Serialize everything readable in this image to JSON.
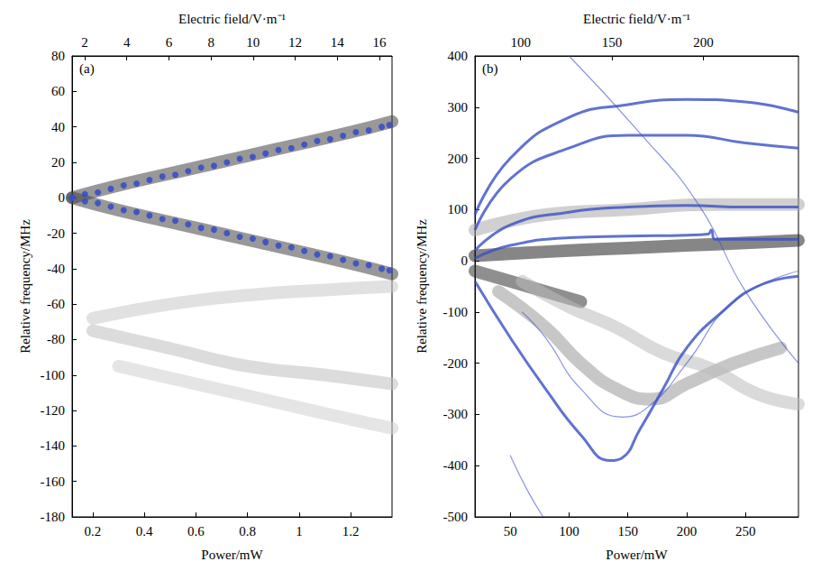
{
  "chart_data": [
    {
      "type": "line",
      "annotation": "(a)",
      "x_label": "Power/mW",
      "x2_label": "Electric field/V·m⁻¹",
      "y_label": "Relative frequency/MHz",
      "xlim": [
        0.12,
        1.36
      ],
      "xticks": [
        0.2,
        0.4,
        0.6,
        0.8,
        1.0,
        1.2
      ],
      "x2lim": [
        1.4,
        16.6
      ],
      "x2ticks": [
        2,
        4,
        6,
        8,
        10,
        12,
        14,
        16
      ],
      "ylim": [
        -180,
        80
      ],
      "yticks": [
        -180,
        -160,
        -140,
        -120,
        -100,
        -80,
        -60,
        -40,
        -20,
        0,
        20,
        40,
        60,
        80
      ],
      "grid": false,
      "series": [
        {
          "type": "band",
          "color": "#444444",
          "x": [
            0.12,
            0.3,
            0.6,
            0.9,
            1.2,
            1.36
          ],
          "values": [
            0,
            7,
            17,
            27,
            37,
            43
          ]
        },
        {
          "type": "band",
          "color": "#444444",
          "x": [
            0.12,
            0.3,
            0.6,
            0.9,
            1.2,
            1.36
          ],
          "values": [
            0,
            -7,
            -17,
            -27,
            -37,
            -43
          ]
        },
        {
          "type": "band",
          "color": "#c8c8c8",
          "x": [
            0.2,
            0.5,
            0.8,
            1.1,
            1.36
          ],
          "values": [
            -68,
            -60,
            -55,
            -52,
            -50
          ]
        },
        {
          "type": "band",
          "color": "#c0c0c0",
          "x": [
            0.2,
            0.5,
            0.8,
            1.1,
            1.36
          ],
          "values": [
            -75,
            -85,
            -95,
            -100,
            -105
          ]
        },
        {
          "type": "band",
          "color": "#d0d0d0",
          "x": [
            0.3,
            0.6,
            0.9,
            1.2,
            1.36
          ],
          "values": [
            -95,
            -105,
            -115,
            -125,
            -130
          ]
        },
        {
          "type": "scatter",
          "marker": "circle",
          "color": "#3a4fc4",
          "x": [
            0.12,
            0.17,
            0.22,
            0.27,
            0.32,
            0.37,
            0.42,
            0.47,
            0.52,
            0.57,
            0.62,
            0.67,
            0.72,
            0.77,
            0.82,
            0.87,
            0.92,
            0.97,
            1.02,
            1.07,
            1.12,
            1.17,
            1.22,
            1.27,
            1.32,
            1.35
          ],
          "values": [
            0,
            2,
            3,
            5,
            7,
            8,
            10,
            12,
            13,
            15,
            17,
            18,
            20,
            22,
            23,
            25,
            27,
            28,
            30,
            32,
            33,
            35,
            37,
            38,
            40,
            41
          ]
        },
        {
          "type": "scatter",
          "marker": "circle",
          "color": "#3a4fc4",
          "x": [
            0.12,
            0.17,
            0.22,
            0.27,
            0.32,
            0.37,
            0.42,
            0.47,
            0.52,
            0.57,
            0.62,
            0.67,
            0.72,
            0.77,
            0.82,
            0.87,
            0.92,
            0.97,
            1.02,
            1.07,
            1.12,
            1.17,
            1.22,
            1.27,
            1.32,
            1.35
          ],
          "values": [
            0,
            -2,
            -3,
            -5,
            -7,
            -8,
            -10,
            -12,
            -13,
            -15,
            -17,
            -18,
            -20,
            -22,
            -23,
            -25,
            -27,
            -28,
            -30,
            -32,
            -33,
            -35,
            -37,
            -38,
            -40,
            -41
          ]
        }
      ]
    },
    {
      "type": "line",
      "annotation": "(b)",
      "x_label": "Power/mW",
      "x2_label": "Electric field/V·m⁻¹",
      "y_label": "Relative frequency/MHz",
      "xlim": [
        20,
        295
      ],
      "xticks": [
        50,
        100,
        150,
        200,
        250
      ],
      "x2lim": [
        75,
        252
      ],
      "x2ticks": [
        100,
        150,
        200
      ],
      "ylim": [
        -500,
        400
      ],
      "yticks": [
        -500,
        -400,
        -300,
        -200,
        -100,
        0,
        100,
        200,
        300,
        400
      ],
      "grid": false,
      "series": [
        {
          "type": "band",
          "color": "#222222",
          "x": [
            20,
            60,
            100,
            150,
            200,
            250,
            295
          ],
          "values": [
            10,
            15,
            20,
            25,
            30,
            35,
            40
          ]
        },
        {
          "type": "band",
          "color": "#333333",
          "x": [
            20,
            50,
            80,
            110
          ],
          "values": [
            -20,
            -40,
            -60,
            -80
          ]
        },
        {
          "type": "band",
          "color": "#999999",
          "x": [
            40,
            80,
            110,
            140,
            170,
            200,
            240,
            280
          ],
          "values": [
            -60,
            -130,
            -200,
            -250,
            -270,
            -240,
            -200,
            -170
          ]
        },
        {
          "type": "band",
          "color": "#bbbbbb",
          "x": [
            60,
            100,
            140,
            180,
            220,
            260,
            295
          ],
          "values": [
            -40,
            -90,
            -130,
            -180,
            -210,
            -260,
            -280
          ]
        },
        {
          "type": "band",
          "color": "#aaaaaa",
          "x": [
            20,
            80,
            150,
            220,
            295
          ],
          "values": [
            60,
            90,
            100,
            110,
            110
          ]
        },
        {
          "type": "line",
          "line_style": "thick",
          "color": "#3a4fc4",
          "x": [
            20,
            50,
            100,
            150,
            200,
            250,
            295
          ],
          "values": [
            90,
            200,
            280,
            305,
            315,
            310,
            290
          ]
        },
        {
          "type": "line",
          "line_style": "thick",
          "color": "#3a4fc4",
          "x": [
            20,
            50,
            100,
            150,
            200,
            250,
            295
          ],
          "values": [
            60,
            160,
            220,
            245,
            245,
            230,
            220
          ]
        },
        {
          "type": "line",
          "line_style": "thick",
          "color": "#3a4fc4",
          "x": [
            20,
            50,
            100,
            150,
            200,
            250,
            295
          ],
          "values": [
            20,
            70,
            95,
            105,
            108,
            105,
            105
          ]
        },
        {
          "type": "line",
          "line_style": "thick",
          "color": "#3a4fc4",
          "x": [
            20,
            50,
            100,
            150,
            200,
            218,
            221,
            224,
            250,
            295
          ],
          "values": [
            5,
            30,
            45,
            48,
            50,
            52,
            60,
            42,
            42,
            42
          ]
        },
        {
          "type": "line",
          "line_style": "thick",
          "color": "#3a4fc4",
          "x": [
            20,
            50,
            80,
            110,
            135,
            145,
            160,
            180,
            200,
            230,
            260,
            295
          ],
          "values": [
            -40,
            -150,
            -250,
            -340,
            -390,
            -385,
            -330,
            -250,
            -170,
            -100,
            -50,
            -30
          ]
        },
        {
          "type": "line",
          "line_style": "thin",
          "color": "#3a4fc4",
          "x": [
            60,
            80,
            110,
            145,
            170,
            200,
            240,
            295
          ],
          "values": [
            -100,
            -150,
            -250,
            -305,
            -280,
            -200,
            -80,
            -20
          ]
        },
        {
          "type": "line",
          "line_style": "thin",
          "color": "#3a4fc4",
          "x": [
            100,
            160,
            210,
            250,
            295
          ],
          "values": [
            400,
            250,
            110,
            -60,
            -200
          ]
        },
        {
          "type": "line",
          "line_style": "thin",
          "color": "#3a4fc4",
          "x": [
            50,
            65,
            78
          ],
          "values": [
            -380,
            -450,
            -500
          ]
        }
      ]
    }
  ]
}
